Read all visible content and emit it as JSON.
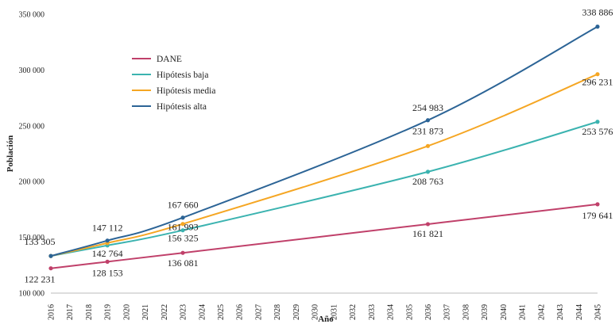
{
  "chart_data": {
    "type": "line",
    "xlabel": "Año",
    "ylabel": "Población",
    "ylim": [
      100000,
      350000
    ],
    "yticks": [
      "100 000",
      "150 000",
      "200 000",
      "250 000",
      "300 000",
      "350 000"
    ],
    "x": [
      2016,
      2017,
      2018,
      2019,
      2020,
      2021,
      2022,
      2023,
      2024,
      2025,
      2026,
      2027,
      2028,
      2029,
      2030,
      2031,
      2032,
      2033,
      2034,
      2035,
      2036,
      2037,
      2038,
      2039,
      2040,
      2041,
      2042,
      2043,
      2044,
      2045
    ],
    "xtick_labels": [
      "2016",
      "2017",
      "2018",
      "2019",
      "2020",
      "2021",
      "2022",
      "2023",
      "2024",
      "2025",
      "2026",
      "2027",
      "2028",
      "2029",
      "2030",
      "2031",
      "2032",
      "2033",
      "2034",
      "2035",
      "2036",
      "2037",
      "2038",
      "2039",
      "2040",
      "2041",
      "2042",
      "2043",
      "2044",
      "2045"
    ],
    "legend_position": "upper-left",
    "grid": false,
    "series": [
      {
        "name": "DANE",
        "color": "#c0406a",
        "points": [
          [
            2016,
            122231
          ],
          [
            2019,
            128153
          ],
          [
            2023,
            136081
          ],
          [
            2036,
            161821
          ],
          [
            2045,
            179641
          ]
        ],
        "labels": [
          "122 231",
          "128 153",
          "136 081",
          "161 821",
          "179 641"
        ]
      },
      {
        "name": "Hipótesis baja",
        "color": "#3bb3b0",
        "points": [
          [
            2016,
            133305
          ],
          [
            2019,
            142764
          ],
          [
            2023,
            156325
          ],
          [
            2036,
            208763
          ],
          [
            2045,
            253576
          ]
        ],
        "labels": [
          "133 305",
          "142 764",
          "156 325",
          "208 763",
          "253 576"
        ]
      },
      {
        "name": "Hipótesis media",
        "color": "#f5a623",
        "points": [
          [
            2016,
            133305
          ],
          [
            2019,
            144900
          ],
          [
            2023,
            161993
          ],
          [
            2036,
            231873
          ],
          [
            2045,
            296231
          ]
        ],
        "labels": [
          "",
          "",
          "161 993",
          "231 873",
          "296 231"
        ]
      },
      {
        "name": "Hipótesis alta",
        "color": "#2c6496",
        "points": [
          [
            2016,
            133305
          ],
          [
            2019,
            147112
          ],
          [
            2023,
            167660
          ],
          [
            2036,
            254983
          ],
          [
            2045,
            338886
          ]
        ],
        "labels": [
          "",
          "147 112",
          "167 660",
          "254 983",
          "338 886"
        ]
      }
    ]
  }
}
